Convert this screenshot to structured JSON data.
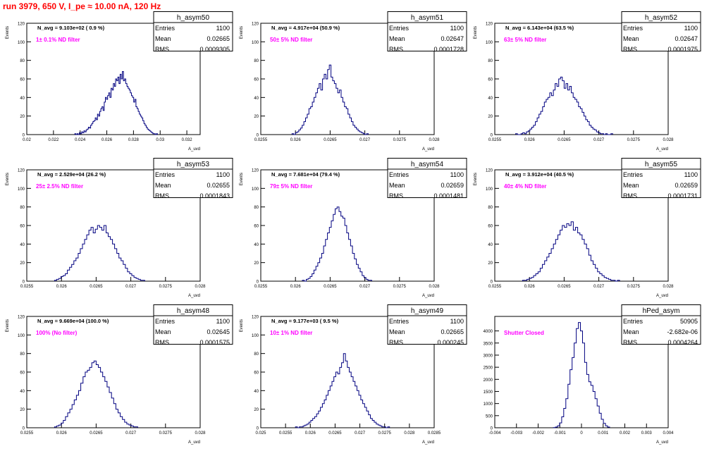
{
  "page": {
    "title": "run 3979,   650 V, I_pe ≈ 10.00 nA, 120 Hz"
  },
  "colors": {
    "histogram": "#000080",
    "annotation": "#ff00ff",
    "title": "#ff0000",
    "axis": "#000000"
  },
  "chart_data": [
    {
      "type": "histogram",
      "name": "h_asym50",
      "stats": {
        "entries": "1100",
        "mean": "0.02665",
        "rms": "0.0009305"
      },
      "navg": "N_avg = 9.103e+02 ( 0.9 %)",
      "note": "1± 0.1% ND filter",
      "xlabel": "A_uvd",
      "ylabel": "Events",
      "xlim": [
        0.02,
        0.033
      ],
      "ylim": [
        0,
        120
      ],
      "xticks": [
        0.02,
        0.022,
        0.024,
        0.026,
        0.028,
        0.03,
        0.032
      ],
      "xtick_labels": [
        "0.02",
        "0.022",
        "0.024",
        "0.026",
        "0.028",
        "0.03",
        "0.032"
      ],
      "yticks": [
        0,
        20,
        40,
        60,
        80,
        100,
        120
      ],
      "ytick_labels": [
        "0",
        "20",
        "40",
        "60",
        "80",
        "100",
        "120"
      ],
      "bin_edges": [
        0.0236,
        0.0298
      ],
      "counts": [
        1,
        0,
        1,
        0,
        2,
        1,
        3,
        2,
        4,
        3,
        5,
        6,
        8,
        7,
        10,
        12,
        14,
        15,
        18,
        16,
        22,
        20,
        25,
        28,
        30,
        26,
        35,
        40,
        38,
        42,
        45,
        40,
        50,
        48,
        55,
        52,
        60,
        58,
        62,
        55,
        65,
        60,
        68,
        58,
        60,
        55,
        52,
        50,
        48,
        45,
        42,
        40,
        35,
        38,
        30,
        28,
        25,
        22,
        20,
        18,
        15,
        12,
        10,
        8,
        6,
        5,
        4,
        3,
        2,
        1,
        1,
        0,
        1
      ]
    },
    {
      "type": "histogram",
      "name": "h_asym51",
      "stats": {
        "entries": "1100",
        "mean": "0.02647",
        "rms": "0.0001728"
      },
      "navg": "N_avg = 4.917e+04 (50.9 %)",
      "note": "50± 5% ND filter",
      "xlabel": "A_uvd",
      "ylabel": "Events",
      "xlim": [
        0.0255,
        0.028
      ],
      "ylim": [
        0,
        120
      ],
      "xticks": [
        0.0255,
        0.026,
        0.0265,
        0.027,
        0.0275,
        0.028
      ],
      "xtick_labels": [
        "0.0255",
        "0.026",
        "0.0265",
        "0.027",
        "0.0275",
        "0.028"
      ],
      "yticks": [
        0,
        20,
        40,
        60,
        80,
        100,
        120
      ],
      "ytick_labels": [
        "0",
        "20",
        "40",
        "60",
        "80",
        "100",
        "120"
      ],
      "bin_edges": [
        0.02595,
        0.02705
      ],
      "counts": [
        1,
        0,
        2,
        3,
        5,
        7,
        10,
        14,
        18,
        22,
        28,
        30,
        35,
        40,
        45,
        50,
        55,
        48,
        60,
        65,
        60,
        70,
        75,
        62,
        58,
        55,
        50,
        45,
        48,
        40,
        35,
        30,
        28,
        22,
        18,
        14,
        10,
        8,
        6,
        4,
        3,
        2,
        1,
        0,
        1
      ]
    },
    {
      "type": "histogram",
      "name": "h_asym52",
      "stats": {
        "entries": "1100",
        "mean": "0.02647",
        "rms": "0.0001975"
      },
      "navg": "N_avg = 6.143e+04 (63.5 %)",
      "note": "63± 5% ND filter",
      "xlabel": "A_uvd",
      "ylabel": "Events",
      "xlim": [
        0.0255,
        0.028
      ],
      "ylim": [
        0,
        120
      ],
      "xticks": [
        0.0255,
        0.026,
        0.0265,
        0.027,
        0.0275,
        0.028
      ],
      "xtick_labels": [
        "0.0255",
        "0.026",
        "0.0265",
        "0.027",
        "0.0275",
        "0.028"
      ],
      "yticks": [
        0,
        20,
        40,
        60,
        80,
        100,
        120
      ],
      "ytick_labels": [
        "0",
        "20",
        "40",
        "60",
        "80",
        "100",
        "120"
      ],
      "bin_edges": [
        0.0258,
        0.0272
      ],
      "counts": [
        1,
        0,
        0,
        1,
        2,
        1,
        3,
        4,
        6,
        8,
        10,
        14,
        18,
        22,
        25,
        30,
        35,
        38,
        40,
        45,
        42,
        48,
        55,
        52,
        60,
        62,
        58,
        50,
        55,
        48,
        52,
        45,
        40,
        38,
        35,
        30,
        28,
        24,
        20,
        16,
        14,
        10,
        8,
        6,
        5,
        3,
        2,
        1,
        1,
        0,
        1,
        0,
        0,
        1
      ]
    },
    {
      "type": "histogram",
      "name": "h_asym53",
      "stats": {
        "entries": "1100",
        "mean": "0.02655",
        "rms": "0.0001843"
      },
      "navg": "N_avg = 2.529e+04 (26.2 %)",
      "note": "25± 2.5% ND filter",
      "xlabel": "A_uvd",
      "ylabel": "Events",
      "xlim": [
        0.0255,
        0.028
      ],
      "ylim": [
        0,
        120
      ],
      "xticks": [
        0.0255,
        0.026,
        0.0265,
        0.027,
        0.0275,
        0.028
      ],
      "xtick_labels": [
        "0.0255",
        "0.026",
        "0.0265",
        "0.027",
        "0.0275",
        "0.028"
      ],
      "yticks": [
        0,
        20,
        40,
        60,
        80,
        100,
        120
      ],
      "ytick_labels": [
        "0",
        "20",
        "40",
        "60",
        "80",
        "100",
        "120"
      ],
      "bin_edges": [
        0.0259,
        0.0272
      ],
      "counts": [
        1,
        2,
        3,
        5,
        6,
        8,
        12,
        15,
        18,
        22,
        25,
        30,
        35,
        40,
        45,
        50,
        55,
        58,
        52,
        56,
        60,
        58,
        55,
        60,
        52,
        48,
        45,
        40,
        35,
        30,
        25,
        22,
        18,
        14,
        10,
        8,
        6,
        4,
        3,
        2,
        1,
        1
      ]
    },
    {
      "type": "histogram",
      "name": "h_asym54",
      "stats": {
        "entries": "1100",
        "mean": "0.02659",
        "rms": "0.0001481"
      },
      "navg": "N_avg = 7.681e+04 (79.4 %)",
      "note": "79± 5% ND filter",
      "xlabel": "A_uvd",
      "ylabel": "Events",
      "xlim": [
        0.0255,
        0.028
      ],
      "ylim": [
        0,
        120
      ],
      "xticks": [
        0.0255,
        0.026,
        0.0265,
        0.027,
        0.0275,
        0.028
      ],
      "xtick_labels": [
        "0.0255",
        "0.026",
        "0.0265",
        "0.027",
        "0.0275",
        "0.028"
      ],
      "yticks": [
        0,
        20,
        40,
        60,
        80,
        100,
        120
      ],
      "ytick_labels": [
        "0",
        "20",
        "40",
        "60",
        "80",
        "100",
        "120"
      ],
      "bin_edges": [
        0.0261,
        0.0271
      ],
      "counts": [
        1,
        0,
        2,
        3,
        5,
        8,
        12,
        16,
        20,
        25,
        30,
        38,
        45,
        52,
        58,
        65,
        72,
        78,
        80,
        75,
        70,
        68,
        60,
        52,
        45,
        38,
        30,
        24,
        18,
        14,
        10,
        6,
        4,
        2,
        1,
        1
      ]
    },
    {
      "type": "histogram",
      "name": "h_asym55",
      "stats": {
        "entries": "1100",
        "mean": "0.02659",
        "rms": "0.0001731"
      },
      "navg": "N_avg = 3.912e+04 (40.5 %)",
      "note": "40± 4% ND filter",
      "xlabel": "A_uvd",
      "ylabel": "Events",
      "xlim": [
        0.0255,
        0.028
      ],
      "ylim": [
        0,
        120
      ],
      "xticks": [
        0.0255,
        0.026,
        0.0265,
        0.027,
        0.0275,
        0.028
      ],
      "xtick_labels": [
        "0.0255",
        "0.026",
        "0.0265",
        "0.027",
        "0.0275",
        "0.028"
      ],
      "yticks": [
        0,
        20,
        40,
        60,
        80,
        100,
        120
      ],
      "ytick_labels": [
        "0",
        "20",
        "40",
        "60",
        "80",
        "100",
        "120"
      ],
      "bin_edges": [
        0.0259,
        0.0273
      ],
      "counts": [
        1,
        1,
        2,
        3,
        4,
        6,
        8,
        10,
        14,
        18,
        22,
        26,
        30,
        35,
        40,
        45,
        50,
        55,
        60,
        58,
        62,
        60,
        64,
        55,
        58,
        52,
        50,
        45,
        40,
        35,
        28,
        22,
        18,
        14,
        10,
        8,
        6,
        4,
        3,
        2,
        1,
        1,
        0,
        1
      ]
    },
    {
      "type": "histogram",
      "name": "h_asym48",
      "stats": {
        "entries": "1100",
        "mean": "0.02645",
        "rms": "0.0001575"
      },
      "navg": "N_avg = 9.669e+04 (100.0 %)",
      "note": "100% (No filter)",
      "xlabel": "A_uvd",
      "ylabel": "Events",
      "xlim": [
        0.0255,
        0.028
      ],
      "ylim": [
        0,
        120
      ],
      "xticks": [
        0.0255,
        0.026,
        0.0265,
        0.027,
        0.0275,
        0.028
      ],
      "xtick_labels": [
        "0.0255",
        "0.026",
        "0.0265",
        "0.027",
        "0.0275",
        "0.028"
      ],
      "yticks": [
        0,
        20,
        40,
        60,
        80,
        100,
        120
      ],
      "ytick_labels": [
        "0",
        "20",
        "40",
        "60",
        "80",
        "100",
        "120"
      ],
      "bin_edges": [
        0.0259,
        0.0271
      ],
      "counts": [
        1,
        2,
        3,
        5,
        8,
        12,
        16,
        20,
        25,
        30,
        35,
        40,
        48,
        55,
        60,
        62,
        65,
        70,
        72,
        68,
        65,
        60,
        55,
        50,
        44,
        38,
        32,
        26,
        20,
        16,
        12,
        9,
        6,
        4,
        3,
        2,
        1,
        1
      ]
    },
    {
      "type": "histogram",
      "name": "h_asym49",
      "stats": {
        "entries": "1100",
        "mean": "0.02665",
        "rms": "0.000245"
      },
      "navg": "N_avg = 9.177e+03 ( 9.5 %)",
      "note": "10± 1% ND filter",
      "xlabel": "A_uvd",
      "ylabel": "Events",
      "xlim": [
        0.025,
        0.0285
      ],
      "ylim": [
        0,
        120
      ],
      "xticks": [
        0.025,
        0.0255,
        0.026,
        0.0265,
        0.027,
        0.0275,
        0.028,
        0.0285
      ],
      "xtick_labels": [
        "0.025",
        "0.0255",
        "0.026",
        "0.0265",
        "0.027",
        "0.0275",
        "0.028",
        "0.0285"
      ],
      "yticks": [
        0,
        20,
        40,
        60,
        80,
        100,
        120
      ],
      "ytick_labels": [
        "0",
        "20",
        "40",
        "60",
        "80",
        "100",
        "120"
      ],
      "bin_edges": [
        0.0257,
        0.0276
      ],
      "counts": [
        1,
        0,
        1,
        1,
        2,
        3,
        4,
        6,
        8,
        10,
        12,
        15,
        18,
        22,
        26,
        30,
        35,
        40,
        45,
        50,
        55,
        60,
        58,
        65,
        70,
        80,
        72,
        65,
        60,
        55,
        50,
        45,
        40,
        35,
        30,
        26,
        22,
        18,
        14,
        10,
        8,
        6,
        4,
        3,
        2,
        1,
        1,
        0,
        1
      ]
    },
    {
      "type": "histogram",
      "name": "hPed_asym",
      "stats": {
        "entries": "50905",
        "mean": "-2.682e-06",
        "rms": "0.0004264"
      },
      "navg": "",
      "note": "Shutter Closed",
      "xlabel": "A_uvd",
      "ylabel": "",
      "xlim": [
        -0.004,
        0.004
      ],
      "ylim": [
        0,
        4600
      ],
      "xticks": [
        -0.004,
        -0.003,
        -0.002,
        -0.001,
        0,
        0.001,
        0.002,
        0.003,
        0.004
      ],
      "xtick_labels": [
        "-0.004",
        "-0.003",
        "-0.002",
        "-0.001",
        "0",
        "0.001",
        "0.002",
        "0.003",
        "0.004"
      ],
      "yticks": [
        0,
        500,
        1000,
        1500,
        2000,
        2500,
        3000,
        3500,
        4000
      ],
      "ytick_labels": [
        "0",
        "500",
        "1000",
        "1500",
        "2000",
        "2500",
        "3000",
        "3500",
        "4000"
      ],
      "bin_edges": [
        -0.0013,
        0.0013
      ],
      "counts": [
        10,
        30,
        80,
        200,
        450,
        800,
        1200,
        1800,
        2400,
        2900,
        3500,
        4100,
        4350,
        4000,
        3500,
        2700,
        2200,
        1900,
        1750,
        1500,
        1200,
        900,
        600,
        350,
        180,
        80,
        30
      ]
    }
  ]
}
